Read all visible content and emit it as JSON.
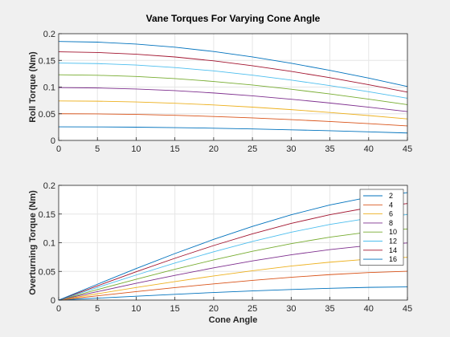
{
  "chart_data": [
    {
      "type": "line",
      "title": "Vane Torques For Varying Cone Angle",
      "xlabel": "",
      "ylabel": "Roll Torque (Nm)",
      "xlim": [
        0,
        45
      ],
      "ylim": [
        0,
        0.2
      ],
      "xticks": [
        "0",
        "5",
        "10",
        "15",
        "20",
        "25",
        "30",
        "35",
        "40",
        "45"
      ],
      "yticks": [
        "0",
        "0.05",
        "0.1",
        "0.15",
        "0.2"
      ],
      "grid": true,
      "x": [
        0,
        5,
        10,
        15,
        20,
        25,
        30,
        35,
        40,
        45
      ],
      "series": [
        {
          "values": [
            0.0255,
            0.0253,
            0.0248,
            0.024,
            0.0229,
            0.0215,
            0.0199,
            0.0181,
            0.0161,
            0.0139
          ]
        },
        {
          "values": [
            0.05,
            0.0497,
            0.0487,
            0.0471,
            0.0449,
            0.0422,
            0.039,
            0.0354,
            0.0315,
            0.0272
          ]
        },
        {
          "values": [
            0.074,
            0.0735,
            0.0721,
            0.0697,
            0.0665,
            0.0624,
            0.0577,
            0.0524,
            0.0466,
            0.0403
          ]
        },
        {
          "values": [
            0.099,
            0.0983,
            0.0964,
            0.0933,
            0.0889,
            0.0835,
            0.0772,
            0.0701,
            0.0623,
            0.054
          ]
        },
        {
          "values": [
            0.123,
            0.1221,
            0.1198,
            0.1159,
            0.1105,
            0.1038,
            0.0959,
            0.0871,
            0.0774,
            0.067
          ]
        },
        {
          "values": [
            0.145,
            0.144,
            0.1412,
            0.1366,
            0.1303,
            0.1223,
            0.1131,
            0.1027,
            0.0913,
            0.079
          ]
        },
        {
          "values": [
            0.166,
            0.1648,
            0.1616,
            0.1564,
            0.1491,
            0.14,
            0.1294,
            0.1175,
            0.1045,
            0.0905
          ]
        },
        {
          "values": [
            0.1855,
            0.1842,
            0.1806,
            0.1747,
            0.1666,
            0.1565,
            0.1446,
            0.1313,
            0.1168,
            0.1011
          ]
        }
      ]
    },
    {
      "type": "line",
      "title": "",
      "xlabel": "Cone Angle",
      "ylabel": "Overturning Torque (Nm)",
      "xlim": [
        0,
        45
      ],
      "ylim": [
        0,
        0.2
      ],
      "xticks": [
        "0",
        "5",
        "10",
        "15",
        "20",
        "25",
        "30",
        "35",
        "40",
        "45"
      ],
      "yticks": [
        "0",
        "0.05",
        "0.1",
        "0.15",
        "0.2"
      ],
      "grid": true,
      "legend_position": "top-right",
      "x": [
        0,
        5,
        10,
        15,
        20,
        25,
        30,
        35,
        40,
        45
      ],
      "series": [
        {
          "name": "2",
          "values": [
            0,
            0.0034,
            0.0068,
            0.0101,
            0.0132,
            0.016,
            0.0185,
            0.0206,
            0.0222,
            0.023
          ]
        },
        {
          "name": "4",
          "values": [
            0,
            0.0074,
            0.0147,
            0.0217,
            0.0283,
            0.0344,
            0.0398,
            0.0444,
            0.048,
            0.0502
          ]
        },
        {
          "name": "6",
          "values": [
            0,
            0.011,
            0.0219,
            0.0323,
            0.0421,
            0.0512,
            0.0593,
            0.0661,
            0.0714,
            0.0746
          ]
        },
        {
          "name": "8",
          "values": [
            0,
            0.0147,
            0.0292,
            0.0431,
            0.0562,
            0.0682,
            0.079,
            0.088,
            0.0952,
            0.0995
          ]
        },
        {
          "name": "10",
          "values": [
            0,
            0.0183,
            0.0363,
            0.0537,
            0.07,
            0.085,
            0.0984,
            0.1097,
            0.1186,
            0.124
          ]
        },
        {
          "name": "12",
          "values": [
            0,
            0.022,
            0.0437,
            0.0646,
            0.0842,
            0.1022,
            0.1183,
            0.1319,
            0.1426,
            0.1491
          ]
        },
        {
          "name": "14",
          "values": [
            0,
            0.0248,
            0.0494,
            0.0729,
            0.0951,
            0.1154,
            0.1336,
            0.1489,
            0.161,
            0.1683
          ]
        },
        {
          "name": "16",
          "values": [
            0,
            0.0276,
            0.055,
            0.0811,
            0.1058,
            0.1284,
            0.1487,
            0.1658,
            0.1792,
            0.1873
          ]
        }
      ]
    }
  ],
  "colors": [
    "#0072BD",
    "#D95319",
    "#EDB120",
    "#7E2F8E",
    "#77AC30",
    "#4DBEEE",
    "#A2142F",
    "#0072BD"
  ]
}
